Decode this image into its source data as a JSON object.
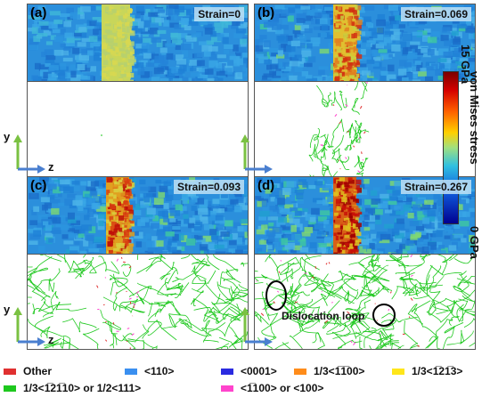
{
  "panels": [
    {
      "label": "(a)",
      "strain": "Strain=0"
    },
    {
      "label": "(b)",
      "strain": "Strain=0.069"
    },
    {
      "label": "(c)",
      "strain": "Strain=0.093"
    },
    {
      "label": "(d)",
      "strain": "Strain=0.267"
    }
  ],
  "axes": {
    "y": "y",
    "z": "z"
  },
  "colorbar": {
    "max_label": "15 GPa",
    "title": "von Mises stress",
    "min_label": "0 GPa"
  },
  "annotation": {
    "dislocation_loop": "Dislocation loop"
  },
  "legend": [
    {
      "label": "Other",
      "color": "#e03030"
    },
    {
      "label": "<110>",
      "color": "#3a8ff0"
    },
    {
      "label": "<0001>",
      "color": "#2a2ae0"
    },
    {
      "label": "1/3<1̅1̅00>",
      "color": "#ff8c1a"
    },
    {
      "label": "1/3<1̅21̅3>",
      "color": "#ffe61a"
    },
    {
      "label": "1/3<1̅21̅10> or 1/2<111>",
      "color": "#1ec81e"
    },
    {
      "label": "<1̅100> or <100>",
      "color": "#ff44cc"
    }
  ]
}
